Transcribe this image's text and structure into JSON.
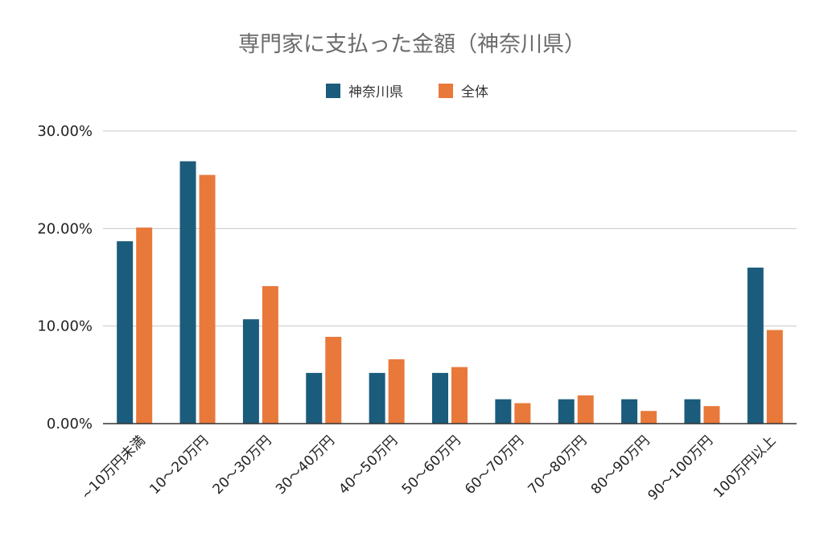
{
  "chart_data": {
    "type": "bar",
    "title": "専門家に支払った金額（神奈川県）",
    "categories": [
      "~10万円未満",
      "10～20万円",
      "20～30万円",
      "30～40万円",
      "40～50万円",
      "50～60万円",
      "60～70万円",
      "70～80万円",
      "80～90万円",
      "90～100万円",
      "100万円以上"
    ],
    "series": [
      {
        "name": "神奈川県",
        "color": "#1b5c7c",
        "values": [
          18.7,
          26.9,
          10.7,
          5.2,
          5.2,
          5.2,
          2.5,
          2.5,
          2.5,
          2.5,
          16.0
        ]
      },
      {
        "name": "全体",
        "color": "#e8793a",
        "values": [
          20.1,
          25.5,
          14.1,
          8.9,
          6.6,
          5.8,
          2.1,
          2.9,
          1.3,
          1.8,
          9.6
        ]
      }
    ],
    "ylim": [
      0,
      30
    ],
    "yticks": [
      "0.00%",
      "10.00%",
      "20.00%",
      "30.00%"
    ],
    "ytick_values": [
      0,
      10,
      20,
      30
    ],
    "xlabel": "",
    "ylabel": "",
    "grid": true,
    "legend_position": "top-center"
  }
}
